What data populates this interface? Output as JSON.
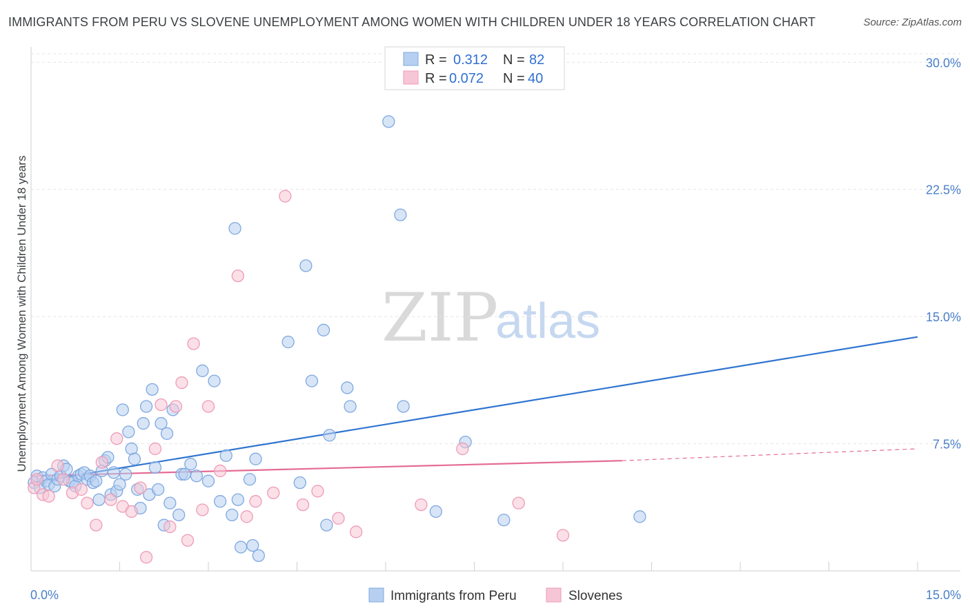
{
  "header": {
    "title": "IMMIGRANTS FROM PERU VS SLOVENE UNEMPLOYMENT AMONG WOMEN WITH CHILDREN UNDER 18 YEARS CORRELATION CHART",
    "source": "Source: ZipAtlas.com"
  },
  "watermark": {
    "zip": "ZIP",
    "atlas": "atlas"
  },
  "legend": {
    "r_label": "R =",
    "n_label": "N =",
    "rows": [
      {
        "name": "Immigrants from Peru",
        "r": "0.312",
        "n": "82"
      },
      {
        "name": "Slovenes",
        "r": "0.072",
        "n": "40"
      }
    ]
  },
  "colors": {
    "peru_fill": "#b7cff0",
    "peru_stroke": "#7fa8e0",
    "peru_line": "#2f74d0",
    "slovene_fill": "#f7c6d6",
    "slovene_stroke": "#ee9bb6",
    "slovene_line": "#e46b94",
    "grid": "#e3e3e3",
    "tick_text": "#4a7fc8"
  },
  "chart_data": {
    "type": "scatter",
    "title": "IMMIGRANTS FROM PERU VS SLOVENE UNEMPLOYMENT AMONG WOMEN WITH CHILDREN UNDER 18 YEARS CORRELATION CHART",
    "xlabel": "",
    "ylabel": "Unemployment Among Women with Children Under 18 years",
    "xlim": [
      0,
      15
    ],
    "ylim": [
      0,
      30.5
    ],
    "x_tick_labels": [
      "0.0%",
      "15.0%"
    ],
    "y_ticks": [
      7.5,
      15.0,
      22.5,
      30.0
    ],
    "y_tick_labels": [
      "7.5%",
      "15.0%",
      "22.5%",
      "30.0%"
    ],
    "grid": true,
    "legend_position": "top-center",
    "series": [
      {
        "name": "Immigrants from Peru",
        "r": 0.312,
        "n": 82,
        "points": [
          [
            0.05,
            5.2
          ],
          [
            0.1,
            5.6
          ],
          [
            0.15,
            4.9
          ],
          [
            0.2,
            5.5
          ],
          [
            0.25,
            5.3
          ],
          [
            0.3,
            5.1
          ],
          [
            0.35,
            5.7
          ],
          [
            0.4,
            5.0
          ],
          [
            0.45,
            5.4
          ],
          [
            0.5,
            5.6
          ],
          [
            0.55,
            6.2
          ],
          [
            0.6,
            6.0
          ],
          [
            0.65,
            5.3
          ],
          [
            0.7,
            5.2
          ],
          [
            0.75,
            5.0
          ],
          [
            0.8,
            5.6
          ],
          [
            0.85,
            5.7
          ],
          [
            0.9,
            5.8
          ],
          [
            0.95,
            5.4
          ],
          [
            1.0,
            5.6
          ],
          [
            1.05,
            5.2
          ],
          [
            1.1,
            5.3
          ],
          [
            1.15,
            4.2
          ],
          [
            1.2,
            5.9
          ],
          [
            1.25,
            6.5
          ],
          [
            1.3,
            6.7
          ],
          [
            1.35,
            4.5
          ],
          [
            1.4,
            5.8
          ],
          [
            1.45,
            4.7
          ],
          [
            1.5,
            5.1
          ],
          [
            1.55,
            9.5
          ],
          [
            1.6,
            5.7
          ],
          [
            1.65,
            8.2
          ],
          [
            1.7,
            7.2
          ],
          [
            1.75,
            6.6
          ],
          [
            1.8,
            4.8
          ],
          [
            1.85,
            3.7
          ],
          [
            1.9,
            8.7
          ],
          [
            1.95,
            9.7
          ],
          [
            2.0,
            4.5
          ],
          [
            2.05,
            10.7
          ],
          [
            2.1,
            6.1
          ],
          [
            2.15,
            4.8
          ],
          [
            2.2,
            8.7
          ],
          [
            2.25,
            2.7
          ],
          [
            2.3,
            8.1
          ],
          [
            2.35,
            4.0
          ],
          [
            2.4,
            9.5
          ],
          [
            2.5,
            3.3
          ],
          [
            2.55,
            5.7
          ],
          [
            2.6,
            5.7
          ],
          [
            2.7,
            6.3
          ],
          [
            2.8,
            5.6
          ],
          [
            2.9,
            11.8
          ],
          [
            3.0,
            5.3
          ],
          [
            3.1,
            11.2
          ],
          [
            3.2,
            4.1
          ],
          [
            3.3,
            6.8
          ],
          [
            3.4,
            3.3
          ],
          [
            3.45,
            20.2
          ],
          [
            3.5,
            4.2
          ],
          [
            3.55,
            1.4
          ],
          [
            3.7,
            5.4
          ],
          [
            3.75,
            1.5
          ],
          [
            3.8,
            6.6
          ],
          [
            3.85,
            0.9
          ],
          [
            4.35,
            13.5
          ],
          [
            4.55,
            5.2
          ],
          [
            4.65,
            18.0
          ],
          [
            4.75,
            11.2
          ],
          [
            4.95,
            14.2
          ],
          [
            5.0,
            2.7
          ],
          [
            5.05,
            8.0
          ],
          [
            5.35,
            10.8
          ],
          [
            5.4,
            9.7
          ],
          [
            6.05,
            26.5
          ],
          [
            6.25,
            21.0
          ],
          [
            6.3,
            9.7
          ],
          [
            6.85,
            3.5
          ],
          [
            7.35,
            7.6
          ],
          [
            8.0,
            3.0
          ],
          [
            10.3,
            3.2
          ]
        ],
        "trend": {
          "x": [
            0.0,
            15.0
          ],
          "y": [
            5.2,
            13.8
          ]
        }
      },
      {
        "name": "Slovenes",
        "r": 0.072,
        "n": 40,
        "points": [
          [
            0.05,
            4.9
          ],
          [
            0.1,
            5.4
          ],
          [
            0.2,
            4.5
          ],
          [
            0.3,
            4.4
          ],
          [
            0.45,
            6.2
          ],
          [
            0.55,
            5.4
          ],
          [
            0.7,
            4.6
          ],
          [
            0.85,
            4.8
          ],
          [
            0.95,
            4.0
          ],
          [
            1.1,
            2.7
          ],
          [
            1.2,
            6.4
          ],
          [
            1.35,
            4.2
          ],
          [
            1.45,
            7.8
          ],
          [
            1.55,
            3.8
          ],
          [
            1.7,
            3.5
          ],
          [
            1.85,
            4.9
          ],
          [
            1.95,
            0.8
          ],
          [
            2.1,
            7.2
          ],
          [
            2.2,
            9.8
          ],
          [
            2.35,
            2.6
          ],
          [
            2.45,
            9.7
          ],
          [
            2.55,
            11.1
          ],
          [
            2.65,
            1.8
          ],
          [
            2.75,
            13.4
          ],
          [
            2.9,
            3.6
          ],
          [
            3.0,
            9.7
          ],
          [
            3.2,
            5.9
          ],
          [
            3.5,
            17.4
          ],
          [
            3.65,
            3.2
          ],
          [
            3.8,
            4.1
          ],
          [
            4.1,
            4.6
          ],
          [
            4.3,
            22.1
          ],
          [
            4.6,
            3.9
          ],
          [
            4.85,
            4.7
          ],
          [
            5.2,
            3.1
          ],
          [
            5.5,
            2.3
          ],
          [
            6.6,
            3.9
          ],
          [
            7.3,
            7.2
          ],
          [
            8.25,
            4.0
          ],
          [
            9.0,
            2.1
          ]
        ],
        "trend": {
          "x": [
            0.0,
            10.0
          ],
          "y": [
            5.6,
            6.5
          ]
        },
        "trend_extension": {
          "x": [
            10.0,
            15.0
          ],
          "y": [
            6.5,
            7.2
          ]
        }
      }
    ]
  }
}
